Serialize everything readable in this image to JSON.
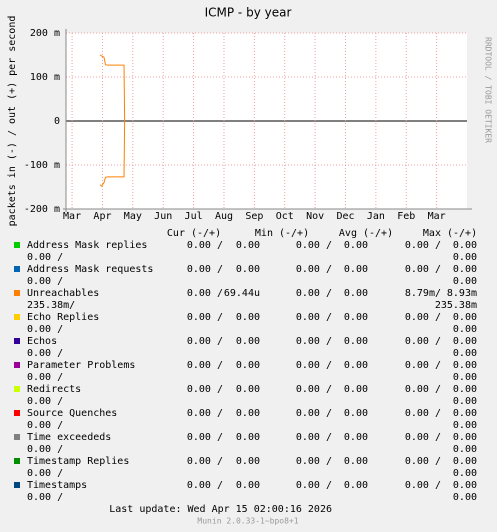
{
  "chart_data": {
    "type": "line",
    "title": "ICMP - by year",
    "ylabel": "packets in (-) / out (+) per second",
    "watermark": "RRDTOOL / TOBI OETIKER",
    "ylim": [
      -0.2,
      0.2
    ],
    "yticks": [
      {
        "value": -0.2,
        "label": "-200 m"
      },
      {
        "value": -0.1,
        "label": "-100 m"
      },
      0,
      {
        "value": 0.1,
        "label": "100 m"
      },
      {
        "value": 0.2,
        "label": "200 m"
      }
    ],
    "xlim": [
      -0.2,
      13
    ],
    "xticks": [
      {
        "value": 0,
        "label": "Mar"
      },
      {
        "value": 1,
        "label": "Apr"
      },
      {
        "value": 2,
        "label": "May"
      },
      {
        "value": 3,
        "label": "Jun"
      },
      {
        "value": 4,
        "label": "Jul"
      },
      {
        "value": 5,
        "label": "Aug"
      },
      {
        "value": 6,
        "label": "Sep"
      },
      {
        "value": 7,
        "label": "Oct"
      },
      {
        "value": 8,
        "label": "Nov"
      },
      {
        "value": 9,
        "label": "Dec"
      },
      {
        "value": 10,
        "label": "Jan"
      },
      {
        "value": 11,
        "label": "Feb"
      },
      {
        "value": 12,
        "label": "Mar"
      }
    ],
    "grid": true,
    "columns": [
      "Cur (-/+)",
      "Min (-/+)",
      "Avg (-/+)",
      "Max (-/+)"
    ],
    "series": [
      {
        "name": "Address Mask replies",
        "color": "#00cc00",
        "cur": [
          "0.00 /",
          "0.00"
        ],
        "min": [
          "0.00 /",
          "0.00"
        ],
        "avg": [
          "0.00 /",
          "0.00"
        ],
        "max": [
          "0.00 /",
          "0.00"
        ]
      },
      {
        "name": "Address Mask requests",
        "color": "#0066b3",
        "cur": [
          "0.00 /",
          "0.00"
        ],
        "min": [
          "0.00 /",
          "0.00"
        ],
        "avg": [
          "0.00 /",
          "0.00"
        ],
        "max": [
          "0.00 /",
          "0.00"
        ]
      },
      {
        "name": "Unreachables",
        "color": "#ff8000",
        "cur": [
          "0.00 /",
          "69.44u"
        ],
        "min": [
          "0.00 /",
          "0.00"
        ],
        "avg": [
          "8.79m/",
          "8.93m"
        ],
        "max": [
          "235.38m/",
          "235.38m"
        ],
        "x": [
          0.92,
          0.97,
          1.05,
          1.1,
          1.18,
          1.71,
          1.73
        ],
        "values": [
          0.15,
          0.148,
          0.145,
          0.128,
          0.127,
          0.127,
          0
        ],
        "values_in": [
          -0.145,
          -0.148,
          -0.14,
          -0.128,
          -0.127,
          -0.127,
          0
        ]
      },
      {
        "name": "Echo Replies",
        "color": "#ffcc00",
        "cur": [
          "0.00 /",
          "0.00"
        ],
        "min": [
          "0.00 /",
          "0.00"
        ],
        "avg": [
          "0.00 /",
          "0.00"
        ],
        "max": [
          "0.00 /",
          "0.00"
        ]
      },
      {
        "name": "Echos",
        "color": "#330099",
        "cur": [
          "0.00 /",
          "0.00"
        ],
        "min": [
          "0.00 /",
          "0.00"
        ],
        "avg": [
          "0.00 /",
          "0.00"
        ],
        "max": [
          "0.00 /",
          "0.00"
        ]
      },
      {
        "name": "Parameter Problems",
        "color": "#990099",
        "cur": [
          "0.00 /",
          "0.00"
        ],
        "min": [
          "0.00 /",
          "0.00"
        ],
        "avg": [
          "0.00 /",
          "0.00"
        ],
        "max": [
          "0.00 /",
          "0.00"
        ]
      },
      {
        "name": "Redirects",
        "color": "#ccff00",
        "cur": [
          "0.00 /",
          "0.00"
        ],
        "min": [
          "0.00 /",
          "0.00"
        ],
        "avg": [
          "0.00 /",
          "0.00"
        ],
        "max": [
          "0.00 /",
          "0.00"
        ]
      },
      {
        "name": "Source Quenches",
        "color": "#ff0000",
        "cur": [
          "0.00 /",
          "0.00"
        ],
        "min": [
          "0.00 /",
          "0.00"
        ],
        "avg": [
          "0.00 /",
          "0.00"
        ],
        "max": [
          "0.00 /",
          "0.00"
        ]
      },
      {
        "name": "Time exceededs",
        "color": "#808080",
        "cur": [
          "0.00 /",
          "0.00"
        ],
        "min": [
          "0.00 /",
          "0.00"
        ],
        "avg": [
          "0.00 /",
          "0.00"
        ],
        "max": [
          "0.00 /",
          "0.00"
        ]
      },
      {
        "name": "Timestamp Replies",
        "color": "#008f00",
        "cur": [
          "0.00 /",
          "0.00"
        ],
        "min": [
          "0.00 /",
          "0.00"
        ],
        "avg": [
          "0.00 /",
          "0.00"
        ],
        "max": [
          "0.00 /",
          "0.00"
        ]
      },
      {
        "name": "Timestamps",
        "color": "#00487d",
        "cur": [
          "0.00 /",
          "0.00"
        ],
        "min": [
          "0.00 /",
          "0.00"
        ],
        "avg": [
          "0.00 /",
          "0.00"
        ],
        "max": [
          "0.00 /",
          "0.00"
        ]
      }
    ],
    "last_update": "Last update: Wed Apr 15 02:00:16 2026",
    "version": "Munin 2.0.33-1~bpo8+1"
  }
}
